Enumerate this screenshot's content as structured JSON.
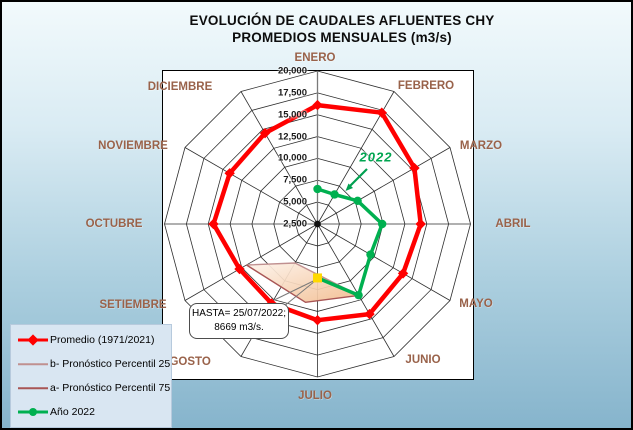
{
  "window": {
    "background_top": "#f2fafc",
    "background_bottom": "#86b4cc",
    "border_color": "#000000"
  },
  "title": {
    "line1": "EVOLUCIÓN DE CAUDALES AFLUENTES CHY",
    "line2": "PROMEDIOS MENSUALES (m3/s)"
  },
  "chart_data": {
    "type": "radar",
    "categories": [
      "ENERO",
      "FEBRERO",
      "MARZO",
      "ABRIL",
      "MAYO",
      "JUNIO",
      "JULIO",
      "AGOSTO",
      "SETIEMBRE",
      "OCTUBRE",
      "NOVIEMBRE",
      "DICIEMBRE"
    ],
    "axis": {
      "min": 2500,
      "max": 20000,
      "step": 2500,
      "tick_labels": [
        "2,500",
        "5,000",
        "7,500",
        "10,000",
        "12,500",
        "15,000",
        "17,500",
        "20,000"
      ],
      "grid": true,
      "rings": 7
    },
    "series": [
      {
        "name": "Promedio (1971/2021)",
        "color": "#ff0000",
        "marker": "diamond",
        "line_width": 4.5,
        "closed": true,
        "values": [
          16100,
          17200,
          15300,
          14300,
          13800,
          14400,
          13500,
          13000,
          12800,
          14400,
          14100,
          14500
        ]
      },
      {
        "name": "b- Pronóstico  Percentil 25",
        "color": "#c09090",
        "line_width": 1.4,
        "polar_points": [
          [
            240,
            11880
          ],
          [
            210,
            7650
          ],
          [
            150,
            11930
          ]
        ]
      },
      {
        "name": "a- Pronóstico  Percentil 75",
        "color": "#a85555",
        "line_width": 1.4,
        "polar_points": [
          [
            240,
            11880
          ],
          [
            188.7,
            11560
          ],
          [
            150,
            11930
          ]
        ]
      },
      {
        "name": "Año 2022",
        "color": "#00b050",
        "marker": "circle",
        "line_width": 3.5,
        "values": [
          6500,
          6400,
          7800,
          9900,
          9500,
          11900,
          8669
        ],
        "last_point_marker": {
          "shape": "square",
          "color": "#ffd900"
        }
      }
    ],
    "forecast_region": {
      "polar_points": [
        [
          240,
          11880
        ],
        [
          210,
          7650
        ],
        [
          150,
          11930
        ],
        [
          188.7,
          11560
        ]
      ],
      "fill_top": "#fdf4ec",
      "fill_bottom": "#f2bb8d"
    },
    "annotations": {
      "year_label": {
        "text": "2022",
        "color": "#00a550"
      },
      "callout": {
        "line1": "HASTA= 25/07/2022;",
        "line2": "8669 m3/s."
      }
    },
    "legend_position": "bottom-left"
  }
}
